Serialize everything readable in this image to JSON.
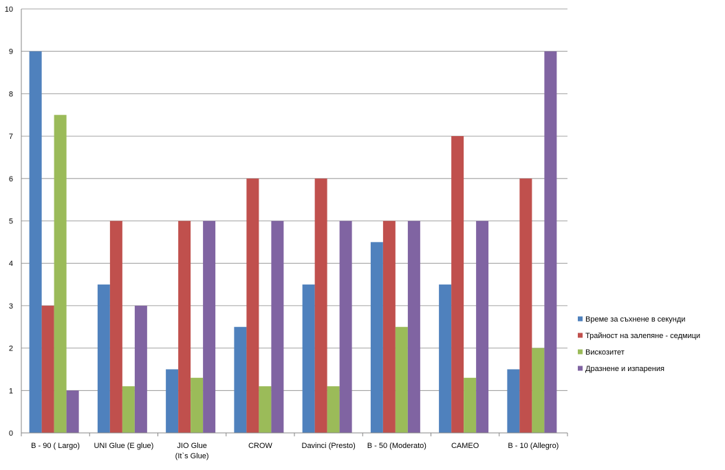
{
  "chart_data": {
    "type": "bar",
    "title": "",
    "xlabel": "",
    "ylabel": "",
    "ylim": [
      0,
      10
    ],
    "ytick_step": 1,
    "grid": true,
    "legend_position": "right",
    "categories": [
      [
        "B - 90 ( Largo)"
      ],
      [
        "UNI Glue (E glue)"
      ],
      [
        "JIO Glue",
        "(It`s Glue)"
      ],
      [
        "CROW"
      ],
      [
        "Davinci (Presto)"
      ],
      [
        "B - 50 (Moderato)"
      ],
      [
        "CAMEO"
      ],
      [
        "B - 10 (Allegro)"
      ]
    ],
    "series": [
      {
        "name": "Време  за съхнене в секунди",
        "color": "#4f81bd",
        "values": [
          9,
          3.5,
          1.5,
          2.5,
          3.5,
          4.5,
          3.5,
          1.5
        ]
      },
      {
        "name": "Трайност на залепяне - седмици",
        "color": "#c0504d",
        "values": [
          3,
          5,
          5,
          6,
          6,
          5,
          7,
          6
        ]
      },
      {
        "name": "Вискозитет",
        "color": "#9bbb59",
        "values": [
          7.5,
          1.1,
          1.3,
          1.1,
          1.1,
          2.5,
          1.3,
          2
        ]
      },
      {
        "name": "Дразнене и изпарения",
        "color": "#8064a2",
        "values": [
          1,
          3,
          5,
          5,
          5,
          5,
          5,
          9
        ]
      }
    ]
  }
}
